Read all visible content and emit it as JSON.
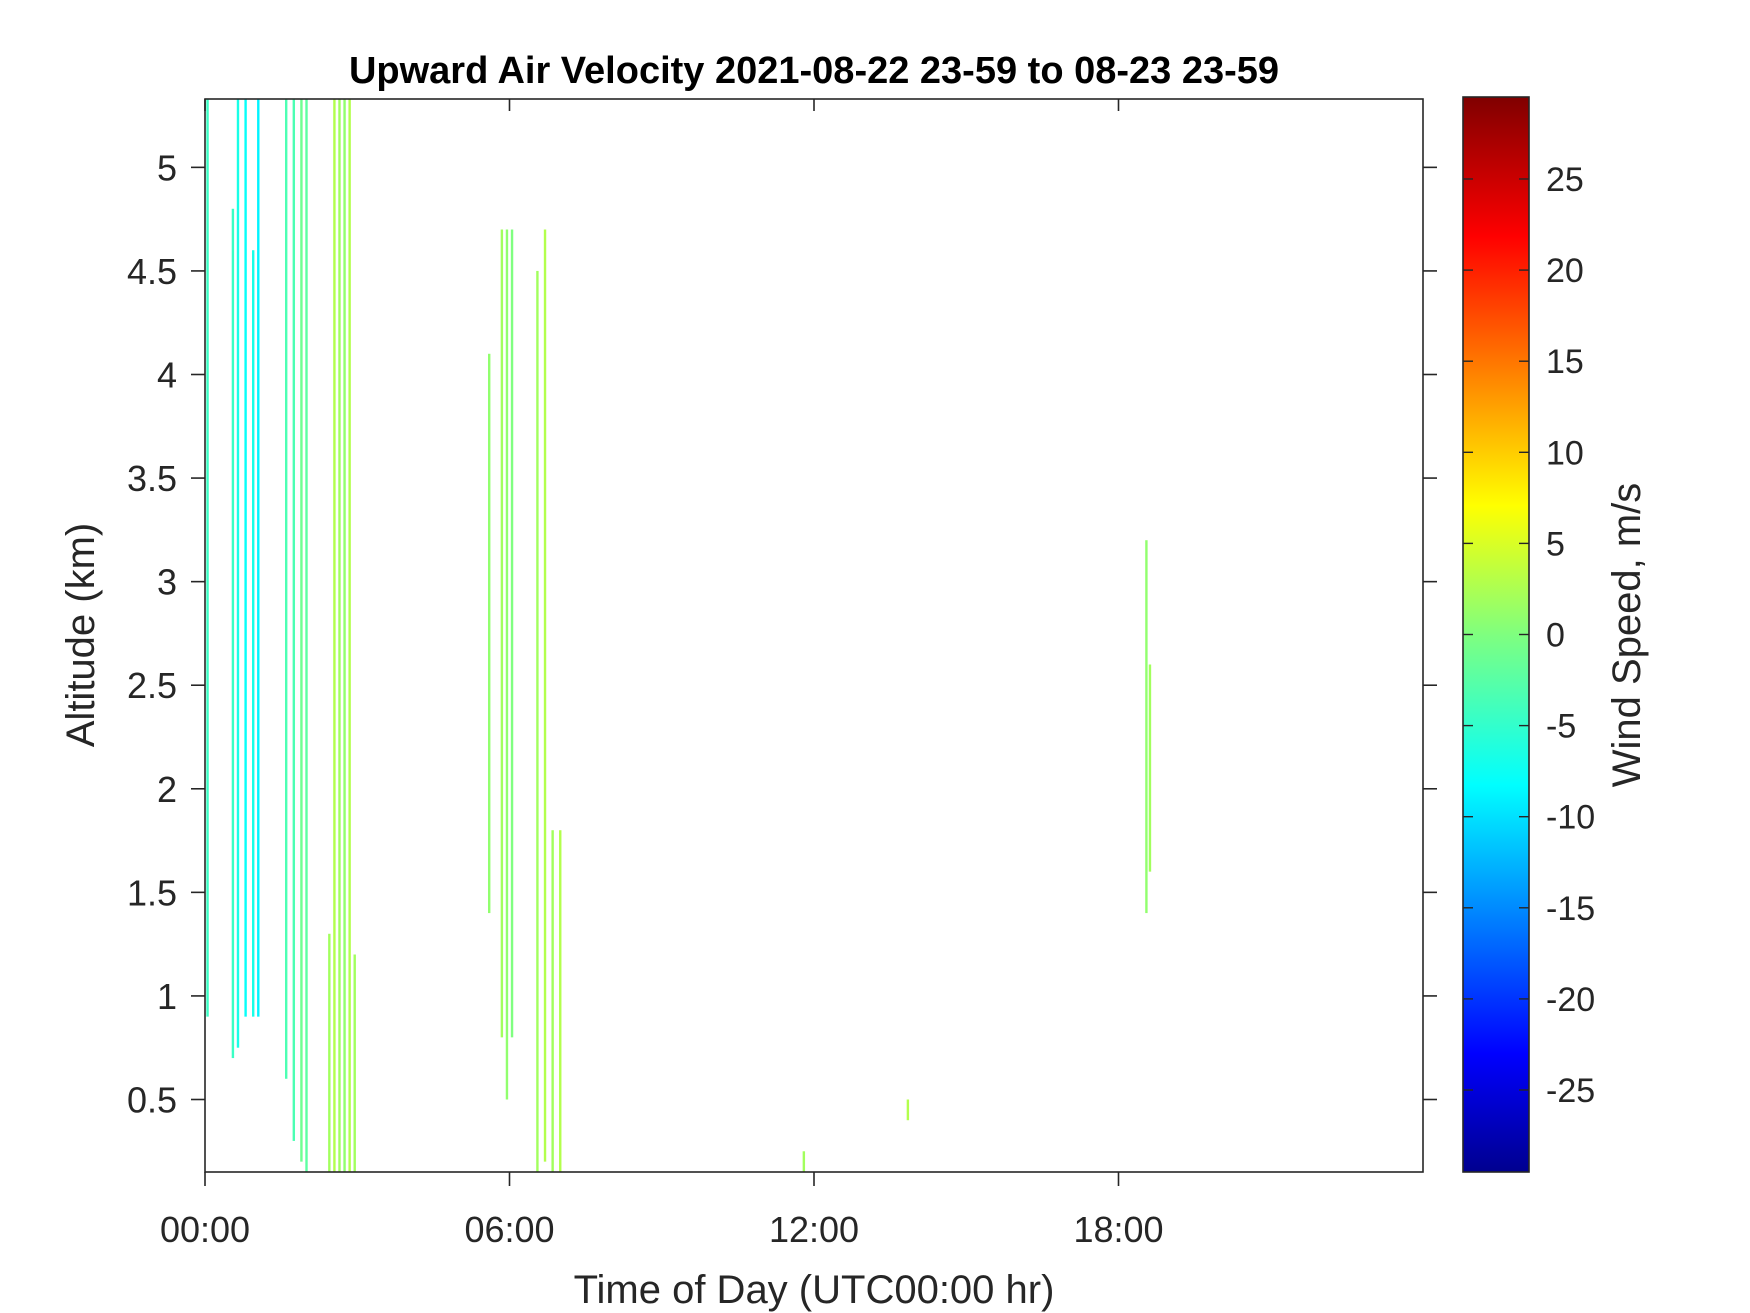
{
  "chart_data": {
    "type": "heatmap",
    "title": "Upward Air Velocity 2021-08-22 23-59 to 08-23 23-59",
    "xlabel": "Time of Day (UTC00:00 hr)",
    "ylabel": "Altitude (km)",
    "colorbar_label": "Wind Speed, m/s",
    "colormap": "jet",
    "xlim_hours": [
      0,
      24
    ],
    "ylim_km": [
      0.15,
      5.33
    ],
    "clim": [
      -29.5,
      29.5
    ],
    "x_ticks": [
      {
        "value": 0,
        "label": "00:00"
      },
      {
        "value": 6,
        "label": "06:00"
      },
      {
        "value": 12,
        "label": "12:00"
      },
      {
        "value": 18,
        "label": "18:00"
      }
    ],
    "y_ticks": [
      {
        "value": 0.5,
        "label": "0.5"
      },
      {
        "value": 1,
        "label": "1"
      },
      {
        "value": 1.5,
        "label": "1.5"
      },
      {
        "value": 2,
        "label": "2"
      },
      {
        "value": 2.5,
        "label": "2.5"
      },
      {
        "value": 3,
        "label": "3"
      },
      {
        "value": 3.5,
        "label": "3.5"
      },
      {
        "value": 4,
        "label": "4"
      },
      {
        "value": 4.5,
        "label": "4.5"
      },
      {
        "value": 5,
        "label": "5"
      }
    ],
    "colorbar_ticks": [
      {
        "value": 25,
        "label": "25"
      },
      {
        "value": 20,
        "label": "20"
      },
      {
        "value": 15,
        "label": "15"
      },
      {
        "value": 10,
        "label": "10"
      },
      {
        "value": 5,
        "label": "5"
      },
      {
        "value": 0,
        "label": "0"
      },
      {
        "value": -5,
        "label": "-5"
      },
      {
        "value": -10,
        "label": "-10"
      },
      {
        "value": -15,
        "label": "-15"
      },
      {
        "value": -20,
        "label": "-20"
      },
      {
        "value": -25,
        "label": "-25"
      }
    ],
    "series": [
      {
        "hour": 0.05,
        "alt_bottom": 0.9,
        "alt_top": 5.33,
        "speed": -4
      },
      {
        "hour": 0.55,
        "alt_bottom": 0.7,
        "alt_top": 4.8,
        "speed": -4
      },
      {
        "hour": 0.65,
        "alt_bottom": 0.75,
        "alt_top": 5.33,
        "speed": -6
      },
      {
        "hour": 0.8,
        "alt_bottom": 0.9,
        "alt_top": 5.33,
        "speed": -7
      },
      {
        "hour": 0.95,
        "alt_bottom": 0.9,
        "alt_top": 4.6,
        "speed": -6
      },
      {
        "hour": 1.05,
        "alt_bottom": 0.9,
        "alt_top": 5.33,
        "speed": -8
      },
      {
        "hour": 1.6,
        "alt_bottom": 0.6,
        "alt_top": 5.33,
        "speed": -3
      },
      {
        "hour": 1.75,
        "alt_bottom": 0.3,
        "alt_top": 5.33,
        "speed": -3
      },
      {
        "hour": 1.9,
        "alt_bottom": 0.2,
        "alt_top": 5.33,
        "speed": -1
      },
      {
        "hour": 2.0,
        "alt_bottom": 0.15,
        "alt_top": 5.33,
        "speed": -2
      },
      {
        "hour": 2.45,
        "alt_bottom": 0.15,
        "alt_top": 1.3,
        "speed": 2
      },
      {
        "hour": 2.55,
        "alt_bottom": 0.15,
        "alt_top": 5.33,
        "speed": 3
      },
      {
        "hour": 2.65,
        "alt_bottom": 0.15,
        "alt_top": 5.33,
        "speed": 2
      },
      {
        "hour": 2.75,
        "alt_bottom": 0.15,
        "alt_top": 5.33,
        "speed": 1
      },
      {
        "hour": 2.85,
        "alt_bottom": 0.15,
        "alt_top": 5.33,
        "speed": 3
      },
      {
        "hour": 2.95,
        "alt_bottom": 0.15,
        "alt_top": 1.2,
        "speed": 2
      },
      {
        "hour": 5.6,
        "alt_bottom": 1.4,
        "alt_top": 4.1,
        "speed": 1
      },
      {
        "hour": 5.85,
        "alt_bottom": 0.8,
        "alt_top": 4.7,
        "speed": 2
      },
      {
        "hour": 5.95,
        "alt_bottom": 0.5,
        "alt_top": 4.7,
        "speed": 1
      },
      {
        "hour": 6.05,
        "alt_bottom": 0.8,
        "alt_top": 4.7,
        "speed": 0
      },
      {
        "hour": 6.55,
        "alt_bottom": 0.15,
        "alt_top": 4.5,
        "speed": 2
      },
      {
        "hour": 6.7,
        "alt_bottom": 0.2,
        "alt_top": 4.7,
        "speed": 3
      },
      {
        "hour": 6.85,
        "alt_bottom": 0.15,
        "alt_top": 1.8,
        "speed": 2
      },
      {
        "hour": 7.0,
        "alt_bottom": 0.15,
        "alt_top": 1.8,
        "speed": 3
      },
      {
        "hour": 11.8,
        "alt_bottom": 0.15,
        "alt_top": 0.25,
        "speed": 2
      },
      {
        "hour": 13.85,
        "alt_bottom": 0.4,
        "alt_top": 0.5,
        "speed": 3
      },
      {
        "hour": 18.55,
        "alt_bottom": 1.4,
        "alt_top": 3.2,
        "speed": 1
      },
      {
        "hour": 18.62,
        "alt_bottom": 1.6,
        "alt_top": 2.6,
        "speed": 2
      }
    ]
  }
}
